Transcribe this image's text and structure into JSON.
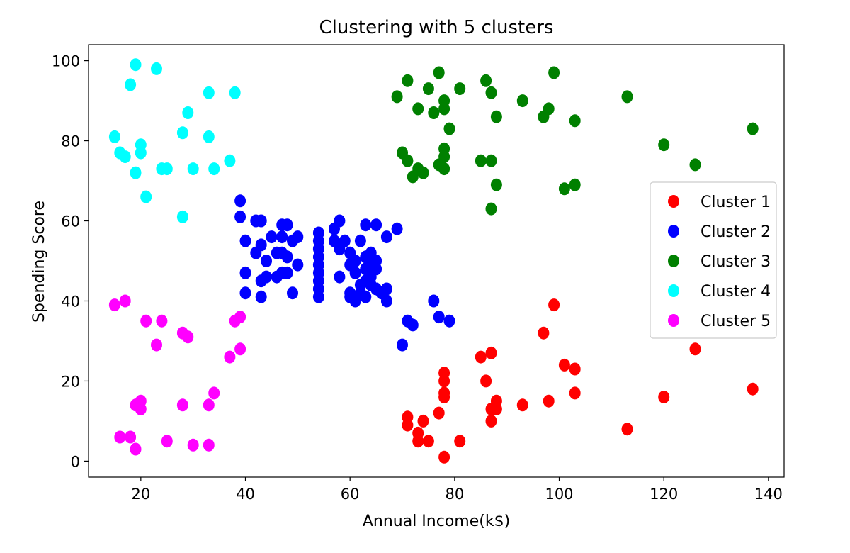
{
  "chart_data": {
    "type": "scatter",
    "title": "Clustering with 5 clusters",
    "xlabel": "Annual Income(k$)",
    "ylabel": "Spending Score",
    "xlim": [
      10,
      143
    ],
    "ylim": [
      -4,
      104
    ],
    "xticks": [
      20,
      40,
      60,
      80,
      100,
      120,
      140
    ],
    "yticks": [
      0,
      20,
      40,
      60,
      80,
      100
    ],
    "grid": false,
    "legend_position": "center-right",
    "series": [
      {
        "name": "Cluster 1",
        "color": "#ff0000",
        "points": [
          [
            71,
            11
          ],
          [
            71,
            9
          ],
          [
            73,
            7
          ],
          [
            73,
            5
          ],
          [
            74,
            10
          ],
          [
            75,
            5
          ],
          [
            77,
            12
          ],
          [
            78,
            22
          ],
          [
            78,
            20
          ],
          [
            78,
            17
          ],
          [
            78,
            16
          ],
          [
            78,
            1
          ],
          [
            81,
            5
          ],
          [
            85,
            26
          ],
          [
            86,
            20
          ],
          [
            87,
            27
          ],
          [
            87,
            10
          ],
          [
            87,
            13
          ],
          [
            88,
            15
          ],
          [
            88,
            13
          ],
          [
            93,
            14
          ],
          [
            97,
            32
          ],
          [
            98,
            15
          ],
          [
            99,
            39
          ],
          [
            101,
            24
          ],
          [
            103,
            23
          ],
          [
            103,
            17
          ],
          [
            113,
            8
          ],
          [
            120,
            16
          ],
          [
            126,
            28
          ],
          [
            137,
            18
          ]
        ]
      },
      {
        "name": "Cluster 2",
        "color": "#0000ff",
        "points": [
          [
            39,
            65
          ],
          [
            39,
            61
          ],
          [
            40,
            55
          ],
          [
            40,
            47
          ],
          [
            40,
            42
          ],
          [
            42,
            52
          ],
          [
            42,
            60
          ],
          [
            43,
            60
          ],
          [
            43,
            54
          ],
          [
            43,
            45
          ],
          [
            43,
            41
          ],
          [
            44,
            50
          ],
          [
            44,
            46
          ],
          [
            45,
            56
          ],
          [
            46,
            52
          ],
          [
            46,
            46
          ],
          [
            47,
            59
          ],
          [
            47,
            56
          ],
          [
            47,
            52
          ],
          [
            47,
            47
          ],
          [
            48,
            59
          ],
          [
            48,
            51
          ],
          [
            48,
            47
          ],
          [
            49,
            55
          ],
          [
            49,
            42
          ],
          [
            50,
            56
          ],
          [
            50,
            49
          ],
          [
            54,
            57
          ],
          [
            54,
            55
          ],
          [
            54,
            53
          ],
          [
            54,
            51
          ],
          [
            54,
            49
          ],
          [
            54,
            47
          ],
          [
            54,
            45
          ],
          [
            54,
            43
          ],
          [
            54,
            41
          ],
          [
            57,
            58
          ],
          [
            57,
            55
          ],
          [
            58,
            60
          ],
          [
            58,
            53
          ],
          [
            58,
            46
          ],
          [
            59,
            55
          ],
          [
            60,
            52
          ],
          [
            60,
            49
          ],
          [
            60,
            42
          ],
          [
            60,
            41
          ],
          [
            61,
            50
          ],
          [
            61,
            47
          ],
          [
            61,
            40
          ],
          [
            62,
            55
          ],
          [
            62,
            44
          ],
          [
            62,
            42
          ],
          [
            63,
            59
          ],
          [
            63,
            51
          ],
          [
            63,
            48
          ],
          [
            63,
            45
          ],
          [
            63,
            41
          ],
          [
            64,
            52
          ],
          [
            64,
            49
          ],
          [
            64,
            46
          ],
          [
            64,
            44
          ],
          [
            65,
            59
          ],
          [
            65,
            50
          ],
          [
            65,
            48
          ],
          [
            65,
            43
          ],
          [
            66,
            42
          ],
          [
            67,
            56
          ],
          [
            67,
            43
          ],
          [
            67,
            40
          ],
          [
            69,
            58
          ],
          [
            70,
            29
          ],
          [
            71,
            35
          ],
          [
            72,
            34
          ],
          [
            76,
            40
          ],
          [
            77,
            36
          ],
          [
            79,
            35
          ]
        ]
      },
      {
        "name": "Cluster 3",
        "color": "#008000",
        "points": [
          [
            69,
            91
          ],
          [
            70,
            77
          ],
          [
            71,
            95
          ],
          [
            71,
            75
          ],
          [
            72,
            71
          ],
          [
            73,
            88
          ],
          [
            73,
            73
          ],
          [
            74,
            72
          ],
          [
            75,
            93
          ],
          [
            76,
            87
          ],
          [
            77,
            97
          ],
          [
            77,
            74
          ],
          [
            78,
            90
          ],
          [
            78,
            88
          ],
          [
            78,
            78
          ],
          [
            78,
            76
          ],
          [
            78,
            73
          ],
          [
            79,
            83
          ],
          [
            81,
            93
          ],
          [
            85,
            75
          ],
          [
            86,
            95
          ],
          [
            87,
            92
          ],
          [
            87,
            75
          ],
          [
            87,
            63
          ],
          [
            88,
            86
          ],
          [
            88,
            69
          ],
          [
            93,
            90
          ],
          [
            97,
            86
          ],
          [
            98,
            88
          ],
          [
            99,
            97
          ],
          [
            101,
            68
          ],
          [
            103,
            85
          ],
          [
            103,
            69
          ],
          [
            113,
            91
          ],
          [
            120,
            79
          ],
          [
            126,
            74
          ],
          [
            137,
            83
          ]
        ]
      },
      {
        "name": "Cluster 4",
        "color": "#00ffff",
        "points": [
          [
            15,
            81
          ],
          [
            16,
            77
          ],
          [
            17,
            76
          ],
          [
            18,
            94
          ],
          [
            19,
            99
          ],
          [
            19,
            72
          ],
          [
            20,
            79
          ],
          [
            20,
            77
          ],
          [
            21,
            66
          ],
          [
            23,
            98
          ],
          [
            24,
            73
          ],
          [
            25,
            73
          ],
          [
            28,
            82
          ],
          [
            28,
            61
          ],
          [
            29,
            87
          ],
          [
            30,
            73
          ],
          [
            33,
            92
          ],
          [
            33,
            81
          ],
          [
            34,
            73
          ],
          [
            37,
            75
          ],
          [
            38,
            92
          ]
        ]
      },
      {
        "name": "Cluster 5",
        "color": "#ff00ff",
        "points": [
          [
            15,
            39
          ],
          [
            16,
            6
          ],
          [
            17,
            40
          ],
          [
            18,
            6
          ],
          [
            19,
            3
          ],
          [
            19,
            14
          ],
          [
            20,
            15
          ],
          [
            20,
            13
          ],
          [
            21,
            35
          ],
          [
            23,
            29
          ],
          [
            24,
            35
          ],
          [
            25,
            5
          ],
          [
            28,
            32
          ],
          [
            28,
            14
          ],
          [
            29,
            31
          ],
          [
            30,
            4
          ],
          [
            33,
            4
          ],
          [
            33,
            14
          ],
          [
            34,
            17
          ],
          [
            37,
            26
          ],
          [
            38,
            35
          ],
          [
            39,
            36
          ],
          [
            39,
            28
          ]
        ]
      }
    ]
  }
}
